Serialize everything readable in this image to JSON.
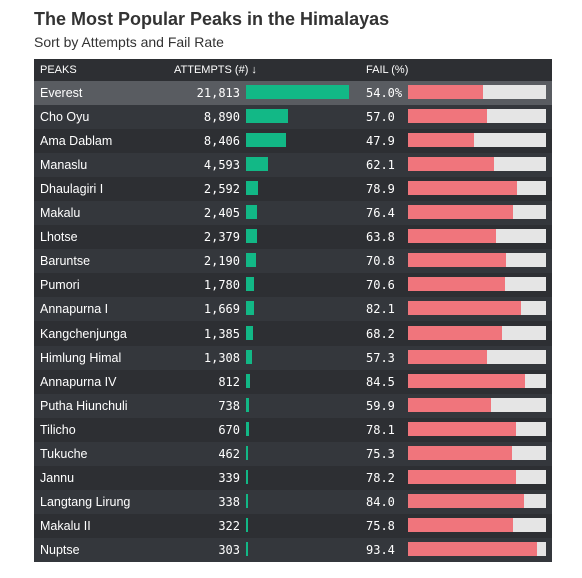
{
  "title": "The Most Popular Peaks in the Himalayas",
  "subtitle": "Sort by Attempts and Fail Rate",
  "headers": {
    "peaks": "PEAKS",
    "attempts": "ATTEMPTS (#) ↓",
    "fail": "FAIL (%)"
  },
  "colors": {
    "attempts_bar": "#12b886",
    "fail_bar": "#f0757c",
    "fail_track": "#e5e5e5",
    "background": "#2d2f33"
  },
  "chart_data": {
    "type": "table",
    "title": "The Most Popular Peaks in the Himalayas",
    "subtitle": "Sort by Attempts and Fail Rate",
    "columns": [
      "PEAKS",
      "ATTEMPTS (#) ↓",
      "FAIL (%)"
    ],
    "attempts_max": 21813,
    "fail_max": 100,
    "rows": [
      {
        "peak": "Everest",
        "attempts": 21813,
        "attempts_label": "21,813",
        "fail": 54.0,
        "fail_label": "54.0%"
      },
      {
        "peak": "Cho Oyu",
        "attempts": 8890,
        "attempts_label": "8,890",
        "fail": 57.0,
        "fail_label": "57.0"
      },
      {
        "peak": "Ama Dablam",
        "attempts": 8406,
        "attempts_label": "8,406",
        "fail": 47.9,
        "fail_label": "47.9"
      },
      {
        "peak": "Manaslu",
        "attempts": 4593,
        "attempts_label": "4,593",
        "fail": 62.1,
        "fail_label": "62.1"
      },
      {
        "peak": "Dhaulagiri I",
        "attempts": 2592,
        "attempts_label": "2,592",
        "fail": 78.9,
        "fail_label": "78.9"
      },
      {
        "peak": "Makalu",
        "attempts": 2405,
        "attempts_label": "2,405",
        "fail": 76.4,
        "fail_label": "76.4"
      },
      {
        "peak": "Lhotse",
        "attempts": 2379,
        "attempts_label": "2,379",
        "fail": 63.8,
        "fail_label": "63.8"
      },
      {
        "peak": "Baruntse",
        "attempts": 2190,
        "attempts_label": "2,190",
        "fail": 70.8,
        "fail_label": "70.8"
      },
      {
        "peak": "Pumori",
        "attempts": 1780,
        "attempts_label": "1,780",
        "fail": 70.6,
        "fail_label": "70.6"
      },
      {
        "peak": "Annapurna I",
        "attempts": 1669,
        "attempts_label": "1,669",
        "fail": 82.1,
        "fail_label": "82.1"
      },
      {
        "peak": "Kangchenjunga",
        "attempts": 1385,
        "attempts_label": "1,385",
        "fail": 68.2,
        "fail_label": "68.2"
      },
      {
        "peak": "Himlung Himal",
        "attempts": 1308,
        "attempts_label": "1,308",
        "fail": 57.3,
        "fail_label": "57.3"
      },
      {
        "peak": "Annapurna IV",
        "attempts": 812,
        "attempts_label": "812",
        "fail": 84.5,
        "fail_label": "84.5"
      },
      {
        "peak": "Putha Hiunchuli",
        "attempts": 738,
        "attempts_label": "738",
        "fail": 59.9,
        "fail_label": "59.9"
      },
      {
        "peak": "Tilicho",
        "attempts": 670,
        "attempts_label": "670",
        "fail": 78.1,
        "fail_label": "78.1"
      },
      {
        "peak": "Tukuche",
        "attempts": 462,
        "attempts_label": "462",
        "fail": 75.3,
        "fail_label": "75.3"
      },
      {
        "peak": "Jannu",
        "attempts": 339,
        "attempts_label": "339",
        "fail": 78.2,
        "fail_label": "78.2"
      },
      {
        "peak": "Langtang Lirung",
        "attempts": 338,
        "attempts_label": "338",
        "fail": 84.0,
        "fail_label": "84.0"
      },
      {
        "peak": "Makalu II",
        "attempts": 322,
        "attempts_label": "322",
        "fail": 75.8,
        "fail_label": "75.8"
      },
      {
        "peak": "Nuptse",
        "attempts": 303,
        "attempts_label": "303",
        "fail": 93.4,
        "fail_label": "93.4"
      }
    ]
  }
}
